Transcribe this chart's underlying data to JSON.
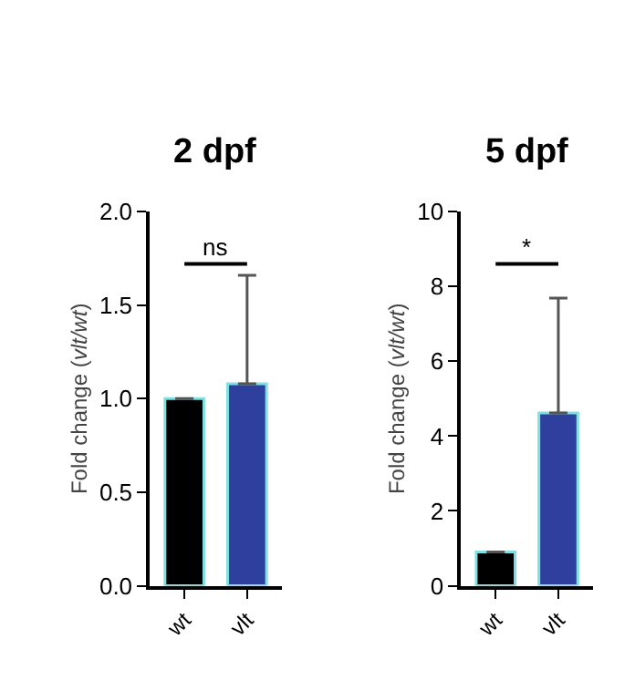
{
  "chart_data": [
    {
      "type": "bar",
      "title": "2 dpf",
      "ylabel": "Fold change (vlt/wt)",
      "categories": [
        "wt",
        "vlt"
      ],
      "values": [
        1.0,
        1.08
      ],
      "colors": [
        "#000000",
        "#2e3f9e"
      ],
      "errors": [
        null,
        [
          1.08,
          1.66
        ]
      ],
      "ylim": [
        0,
        2.0
      ],
      "yticks": [
        {
          "value": 0,
          "label": "0.0"
        },
        0.5,
        {
          "value": 1,
          "label": "1.0"
        },
        1.5,
        {
          "value": 2,
          "label": "2.0"
        }
      ],
      "annotations": [
        "ns"
      ]
    },
    {
      "type": "bar",
      "title": "5 dpf",
      "ylabel": "Fold change (vlt/wt)",
      "categories": [
        "wt",
        "vlt"
      ],
      "values": [
        0.9,
        4.62
      ],
      "colors": [
        "#000000",
        "#2e3f9e"
      ],
      "errors": [
        null,
        [
          4.62,
          7.69
        ]
      ],
      "ylim": [
        0,
        10
      ],
      "yticks": [
        0,
        2,
        4,
        6,
        8,
        10
      ],
      "annotations": [
        "*"
      ]
    }
  ]
}
